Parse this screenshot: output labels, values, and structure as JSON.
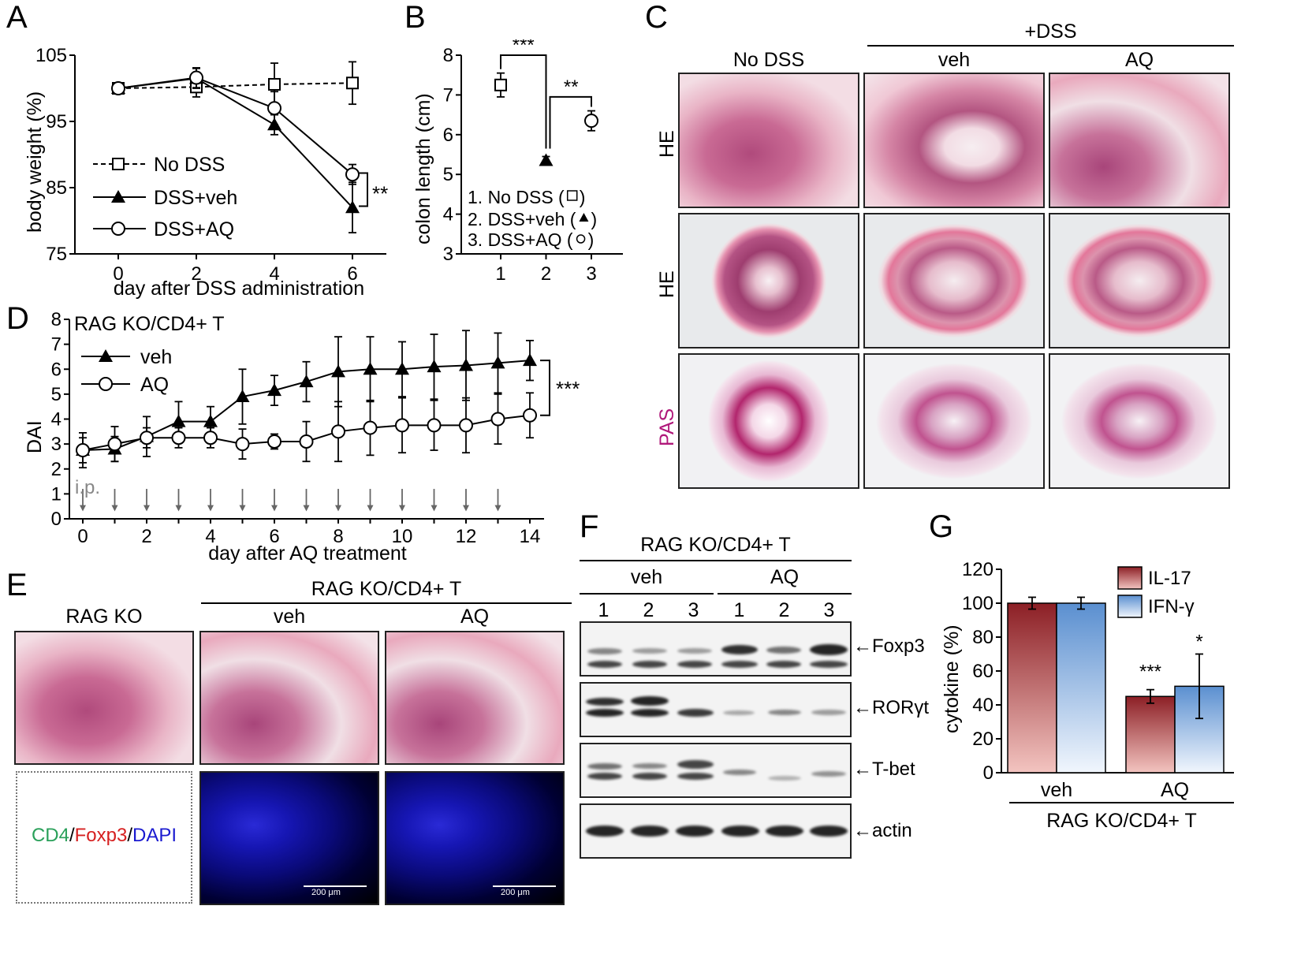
{
  "panels": {
    "A": "A",
    "B": "B",
    "C": "C",
    "D": "D",
    "E": "E",
    "F": "F",
    "G": "G"
  },
  "panelA": {
    "ylabel": "body weight (%)",
    "xlabel": "day after DSS administration",
    "yticks": [
      "75",
      "85",
      "95",
      "105"
    ],
    "xticks": [
      "0",
      "2",
      "4",
      "6"
    ],
    "legend": [
      "No DSS",
      "DSS+veh",
      "DSS+AQ"
    ],
    "sig": "**"
  },
  "panelB": {
    "ylabel": "colon length (cm)",
    "yticks": [
      "3",
      "4",
      "5",
      "6",
      "7",
      "8"
    ],
    "xticks": [
      "1",
      "2",
      "3"
    ],
    "sig1": "***",
    "sig2": "**",
    "legend": [
      "1. No DSS (",
      "2. DSS+veh (",
      "3. DSS+AQ ("
    ]
  },
  "panelC": {
    "group": "+DSS",
    "cols": [
      "No DSS",
      "veh",
      "AQ"
    ],
    "rows": [
      "HE",
      "HE",
      "PAS"
    ]
  },
  "panelD": {
    "title": "RAG KO/CD4+ T",
    "ylabel": "DAI",
    "xlabel": "day after AQ treatment",
    "yticks": [
      "0",
      "1",
      "2",
      "3",
      "4",
      "5",
      "6",
      "7",
      "8"
    ],
    "xticks": [
      "0",
      "2",
      "4",
      "6",
      "8",
      "10",
      "12",
      "14"
    ],
    "legend": [
      "veh",
      "AQ"
    ],
    "ip": "i.p.",
    "sig": "***"
  },
  "panelE": {
    "group": "RAG KO/CD4+ T",
    "cols": [
      "RAG KO",
      "veh",
      "AQ"
    ],
    "stain": {
      "cd4": "CD4",
      "slash1": "/",
      "foxp3": "Foxp3",
      "slash2": "/",
      "dapi": "DAPI"
    },
    "scale": "200 μm"
  },
  "panelF": {
    "group": "RAG KO/CD4+ T",
    "conds": [
      "veh",
      "AQ"
    ],
    "lanes": [
      "1",
      "2",
      "3",
      "1",
      "2",
      "3"
    ],
    "proteins": [
      "Foxp3",
      "RORγt",
      "T-bet",
      "actin"
    ]
  },
  "panelG": {
    "ylabel": "cytokine (%)",
    "yticks": [
      "0",
      "20",
      "40",
      "60",
      "80",
      "100",
      "120"
    ],
    "xticks": [
      "veh",
      "AQ"
    ],
    "group": "RAG KO/CD4+ T",
    "legend": [
      "IL-17",
      "IFN-γ"
    ],
    "sig_il17": "***",
    "sig_ifn": "*"
  },
  "colors": {
    "il17": "#b8383a",
    "ifn": "#7aa6db",
    "pas_label": "#b0187a",
    "cd4": "#2aa05a",
    "foxp3": "#d62020",
    "dapi": "#1a1ad0"
  },
  "chart_data": [
    {
      "type": "line",
      "x": [
        0,
        2,
        4,
        6
      ],
      "xlabel": "day after DSS administration",
      "ylabel": "body weight (%)",
      "ylim": [
        75,
        105
      ],
      "series": [
        {
          "name": "No DSS",
          "values": [
            100,
            100.2,
            100.6,
            100.8
          ],
          "err": [
            0.5,
            1.5,
            3.2,
            3.2
          ]
        },
        {
          "name": "DSS+veh",
          "values": [
            100,
            101.5,
            94.5,
            82
          ],
          "err": [
            0.5,
            1.5,
            1.5,
            3.8
          ]
        },
        {
          "name": "DSS+AQ",
          "values": [
            100,
            101.6,
            97,
            87
          ],
          "err": [
            0.5,
            1.5,
            2.5,
            1.5
          ]
        }
      ]
    },
    {
      "type": "scatter",
      "x": [
        1,
        2,
        3
      ],
      "ylabel": "colon length (cm)",
      "ylim": [
        3,
        8
      ],
      "series": [
        {
          "name": "No DSS",
          "values": [
            7.25
          ],
          "err": [
            0.3
          ]
        },
        {
          "name": "DSS+veh",
          "values": [
            5.35
          ],
          "err": [
            0.1
          ]
        },
        {
          "name": "DSS+AQ",
          "values": [
            6.35
          ],
          "err": [
            0.25
          ]
        }
      ]
    },
    {
      "type": "line",
      "x": [
        0,
        1,
        2,
        3,
        4,
        5,
        6,
        7,
        8,
        9,
        10,
        11,
        12,
        13,
        14
      ],
      "xlabel": "day after AQ treatment",
      "ylabel": "DAI",
      "ylim": [
        0,
        8
      ],
      "series": [
        {
          "name": "veh",
          "values": [
            2.75,
            2.8,
            3.3,
            3.9,
            3.9,
            4.9,
            5.15,
            5.5,
            5.9,
            6.0,
            6.0,
            6.1,
            6.15,
            6.25,
            6.35
          ],
          "err": [
            0.5,
            0.5,
            0.8,
            0.8,
            0.6,
            1.1,
            0.6,
            0.8,
            1.4,
            1.3,
            1.1,
            1.3,
            1.4,
            1.2,
            0.8
          ]
        },
        {
          "name": "AQ",
          "values": [
            2.75,
            3.0,
            3.25,
            3.25,
            3.25,
            3.0,
            3.1,
            3.1,
            3.5,
            3.65,
            3.75,
            3.75,
            3.75,
            4.0,
            4.15
          ],
          "err": [
            0.7,
            0.7,
            0.4,
            0.4,
            0.4,
            0.6,
            0.3,
            0.8,
            1.2,
            1.1,
            1.1,
            1.0,
            1.1,
            1.0,
            0.9
          ]
        }
      ]
    },
    {
      "type": "bar",
      "categories": [
        "veh",
        "AQ"
      ],
      "ylabel": "cytokine (%)",
      "ylim": [
        0,
        120
      ],
      "series": [
        {
          "name": "IL-17",
          "values": [
            100,
            45
          ],
          "err": [
            3.5,
            4
          ]
        },
        {
          "name": "IFN-γ",
          "values": [
            100,
            51
          ],
          "err": [
            3.5,
            19
          ]
        }
      ]
    }
  ]
}
